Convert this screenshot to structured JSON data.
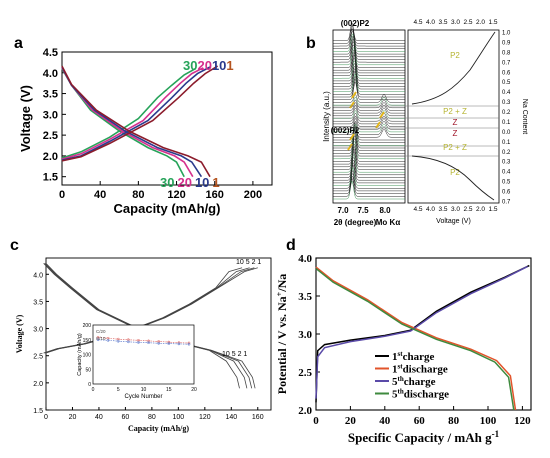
{
  "chart_data": [
    {
      "type": "line",
      "panel_label": "a",
      "xlabel": "Capacity (mAh/g)",
      "ylabel": "Voltage (V)",
      "xlim": [
        0,
        220
      ],
      "ylim": [
        1.3,
        4.5
      ],
      "xticks": [
        "0",
        "40",
        "80",
        "120",
        "160",
        "200"
      ],
      "yticks": [
        "1.5",
        "2.0",
        "2.5",
        "3.0",
        "3.5",
        "4.0",
        "4.5"
      ],
      "cycle_labels_top": [
        {
          "text": "30",
          "color": "#27a35a"
        },
        {
          "text": "20",
          "color": "#d6308e"
        },
        {
          "text": "10",
          "color": "#2a3a8c"
        },
        {
          "text": "1",
          "color": "#b5541f"
        }
      ],
      "cycle_labels_bottom": [
        {
          "text": "30",
          "color": "#27a35a"
        },
        {
          "text": "20",
          "color": "#d6308e"
        },
        {
          "text": "10",
          "color": "#2a3a8c"
        },
        {
          "text": "1",
          "color": "#b5541f"
        }
      ],
      "series": [
        {
          "color": "#27a35a",
          "charge": [
            [
              0,
              1.95
            ],
            [
              20,
              2.1
            ],
            [
              50,
              2.45
            ],
            [
              80,
              2.9
            ],
            [
              100,
              3.4
            ],
            [
              115,
              3.7
            ],
            [
              128,
              3.95
            ],
            [
              140,
              4.1
            ]
          ],
          "discharge": [
            [
              0,
              4.1
            ],
            [
              10,
              3.7
            ],
            [
              30,
              3.1
            ],
            [
              60,
              2.6
            ],
            [
              90,
              2.2
            ],
            [
              110,
              2.0
            ],
            [
              120,
              1.85
            ],
            [
              128,
              1.5
            ]
          ]
        },
        {
          "color": "#d6308e",
          "charge": [
            [
              0,
              1.92
            ],
            [
              20,
              2.05
            ],
            [
              50,
              2.4
            ],
            [
              85,
              2.85
            ],
            [
              108,
              3.4
            ],
            [
              124,
              3.75
            ],
            [
              136,
              3.98
            ],
            [
              148,
              4.12
            ]
          ],
          "discharge": [
            [
              0,
              4.12
            ],
            [
              10,
              3.7
            ],
            [
              32,
              3.1
            ],
            [
              63,
              2.6
            ],
            [
              95,
              2.2
            ],
            [
              118,
              2.0
            ],
            [
              128,
              1.85
            ],
            [
              137,
              1.5
            ]
          ]
        },
        {
          "color": "#2a3a8c",
          "charge": [
            [
              0,
              1.9
            ],
            [
              20,
              2.0
            ],
            [
              50,
              2.35
            ],
            [
              90,
              2.85
            ],
            [
              115,
              3.4
            ],
            [
              130,
              3.75
            ],
            [
              142,
              3.98
            ],
            [
              155,
              4.14
            ]
          ],
          "discharge": [
            [
              0,
              4.14
            ],
            [
              10,
              3.7
            ],
            [
              34,
              3.1
            ],
            [
              66,
              2.6
            ],
            [
              100,
              2.2
            ],
            [
              125,
              2.0
            ],
            [
              136,
              1.85
            ],
            [
              146,
              1.5
            ]
          ]
        },
        {
          "color": "#8c1c2c",
          "charge": [
            [
              0,
              1.88
            ],
            [
              20,
              1.98
            ],
            [
              50,
              2.3
            ],
            [
              95,
              2.85
            ],
            [
              122,
              3.4
            ],
            [
              138,
              3.75
            ],
            [
              150,
              3.98
            ],
            [
              163,
              4.16
            ]
          ],
          "discharge": [
            [
              0,
              4.16
            ],
            [
              10,
              3.72
            ],
            [
              36,
              3.1
            ],
            [
              70,
              2.6
            ],
            [
              106,
              2.2
            ],
            [
              132,
              2.0
            ],
            [
              146,
              1.85
            ],
            [
              155,
              1.5
            ]
          ]
        }
      ]
    },
    {
      "type": "heatmap",
      "panel_label": "b",
      "xlabel": "2θ (degree)",
      "xlabel_suffix": "Mo Kα",
      "ylabel": "Intensity (a.u.)",
      "xticks": [
        "7.0",
        "7.5",
        "8.0"
      ],
      "peak_labels": [
        "(002)P2",
        "(002)P2"
      ],
      "right_xlabel": "Voltage (V)",
      "right_ylabel": "Na Content",
      "right_xticks_top": [
        "4.5",
        "4.0",
        "3.5",
        "3.0",
        "2.5",
        "2.0",
        "1.5"
      ],
      "right_xticks_bottom": [
        "4.5",
        "4.0",
        "3.5",
        "3.0",
        "2.5",
        "2.0",
        "1.5"
      ],
      "right_yticks": [
        "1.0",
        "0.9",
        "0.8",
        "0.7",
        "0.6",
        "0.5",
        "0.4",
        "0.3",
        "0.2",
        "0.1",
        "0.0",
        "0.1",
        "0.2",
        "0.3",
        "0.4",
        "0.5",
        "0.6",
        "0.7"
      ],
      "phase_regions": [
        "P2",
        "P2 + Z",
        "Z",
        "Z",
        "P2 + Z",
        "P2"
      ],
      "phase_color": "#b6b432"
    },
    {
      "type": "line",
      "panel_label": "c",
      "xlabel": "Capacity (mAh/g)",
      "ylabel": "Voltage (V)",
      "xlim": [
        0,
        170
      ],
      "ylim": [
        1.5,
        4.3
      ],
      "xticks": [
        "0",
        "20",
        "40",
        "60",
        "80",
        "100",
        "120",
        "140",
        "160"
      ],
      "yticks": [
        "1.5",
        "2.0",
        "2.5",
        "3.0",
        "3.5",
        "4.0"
      ],
      "cycle_labels_top": "10 5 2 1",
      "cycle_labels_bottom": "10 5 2 1",
      "inset": {
        "xlabel": "Cycle Number",
        "ylabel": "Capacity (mAh/g)",
        "xticks": [
          "0",
          "5",
          "10",
          "15",
          "20"
        ],
        "yticks": [
          "0",
          "50",
          "100",
          "150",
          "200"
        ],
        "legend": [
          "C/20",
          "C/10"
        ],
        "xlim": [
          0,
          20
        ],
        "ylim": [
          0,
          200
        ],
        "series": [
          {
            "name": "C/20",
            "values": [
              [
                1,
                158
              ],
              [
                3,
                155
              ],
              [
                5,
                152
              ],
              [
                7,
                150
              ],
              [
                9,
                148
              ],
              [
                11,
                146
              ],
              [
                13,
                144
              ],
              [
                15,
                142
              ],
              [
                17,
                140
              ],
              [
                19,
                139
              ]
            ]
          },
          {
            "name": "C/10",
            "values": [
              [
                1,
                150
              ],
              [
                3,
                148
              ],
              [
                5,
                145
              ],
              [
                7,
                143
              ],
              [
                9,
                141
              ],
              [
                11,
                140
              ],
              [
                13,
                138
              ],
              [
                15,
                137
              ],
              [
                17,
                136
              ],
              [
                19,
                135
              ]
            ]
          }
        ]
      }
    },
    {
      "type": "line",
      "panel_label": "d",
      "xlabel": "Specific Capacity / mAh g-1",
      "ylabel": "Potential / V vs. Na+/Na",
      "xlim": [
        0,
        125
      ],
      "ylim": [
        2.0,
        4.0
      ],
      "xticks": [
        "0",
        "20",
        "40",
        "60",
        "80",
        "100",
        "120"
      ],
      "yticks": [
        "2.0",
        "2.5",
        "3.0",
        "3.5",
        "4.0"
      ],
      "legend": [
        {
          "base": "1",
          "sup": "st",
          "text": "charge",
          "color": "#000000"
        },
        {
          "base": "1",
          "sup": "st",
          "text": "discharge",
          "color": "#e2542b"
        },
        {
          "base": "5",
          "sup": "th",
          "text": "charge",
          "color": "#5a4aa8"
        },
        {
          "base": "5",
          "sup": "th",
          "text": "discharge",
          "color": "#3e8a3e"
        }
      ],
      "series": [
        {
          "name": "1st charge",
          "color": "#000000",
          "values": [
            [
              0,
              2.1
            ],
            [
              1,
              2.78
            ],
            [
              5,
              2.86
            ],
            [
              20,
              2.92
            ],
            [
              40,
              2.98
            ],
            [
              55,
              3.05
            ],
            [
              70,
              3.3
            ],
            [
              90,
              3.55
            ],
            [
              110,
              3.75
            ],
            [
              124,
              3.9
            ]
          ]
        },
        {
          "name": "1st discharge",
          "color": "#e2542b",
          "values": [
            [
              0,
              3.88
            ],
            [
              10,
              3.7
            ],
            [
              30,
              3.45
            ],
            [
              50,
              3.15
            ],
            [
              70,
              2.95
            ],
            [
              90,
              2.8
            ],
            [
              105,
              2.65
            ],
            [
              113,
              2.45
            ],
            [
              116,
              2.0
            ]
          ]
        },
        {
          "name": "5th charge",
          "color": "#5a4aa8",
          "values": [
            [
              0,
              2.15
            ],
            [
              1,
              2.7
            ],
            [
              5,
              2.82
            ],
            [
              20,
              2.9
            ],
            [
              40,
              2.97
            ],
            [
              55,
              3.04
            ],
            [
              70,
              3.28
            ],
            [
              90,
              3.53
            ],
            [
              110,
              3.74
            ],
            [
              123,
              3.89
            ]
          ]
        },
        {
          "name": "5th discharge",
          "color": "#3e8a3e",
          "values": [
            [
              0,
              3.86
            ],
            [
              10,
              3.68
            ],
            [
              30,
              3.43
            ],
            [
              50,
              3.13
            ],
            [
              70,
              2.93
            ],
            [
              90,
              2.78
            ],
            [
              104,
              2.63
            ],
            [
              112,
              2.43
            ],
            [
              115,
              2.0
            ]
          ]
        }
      ]
    }
  ]
}
